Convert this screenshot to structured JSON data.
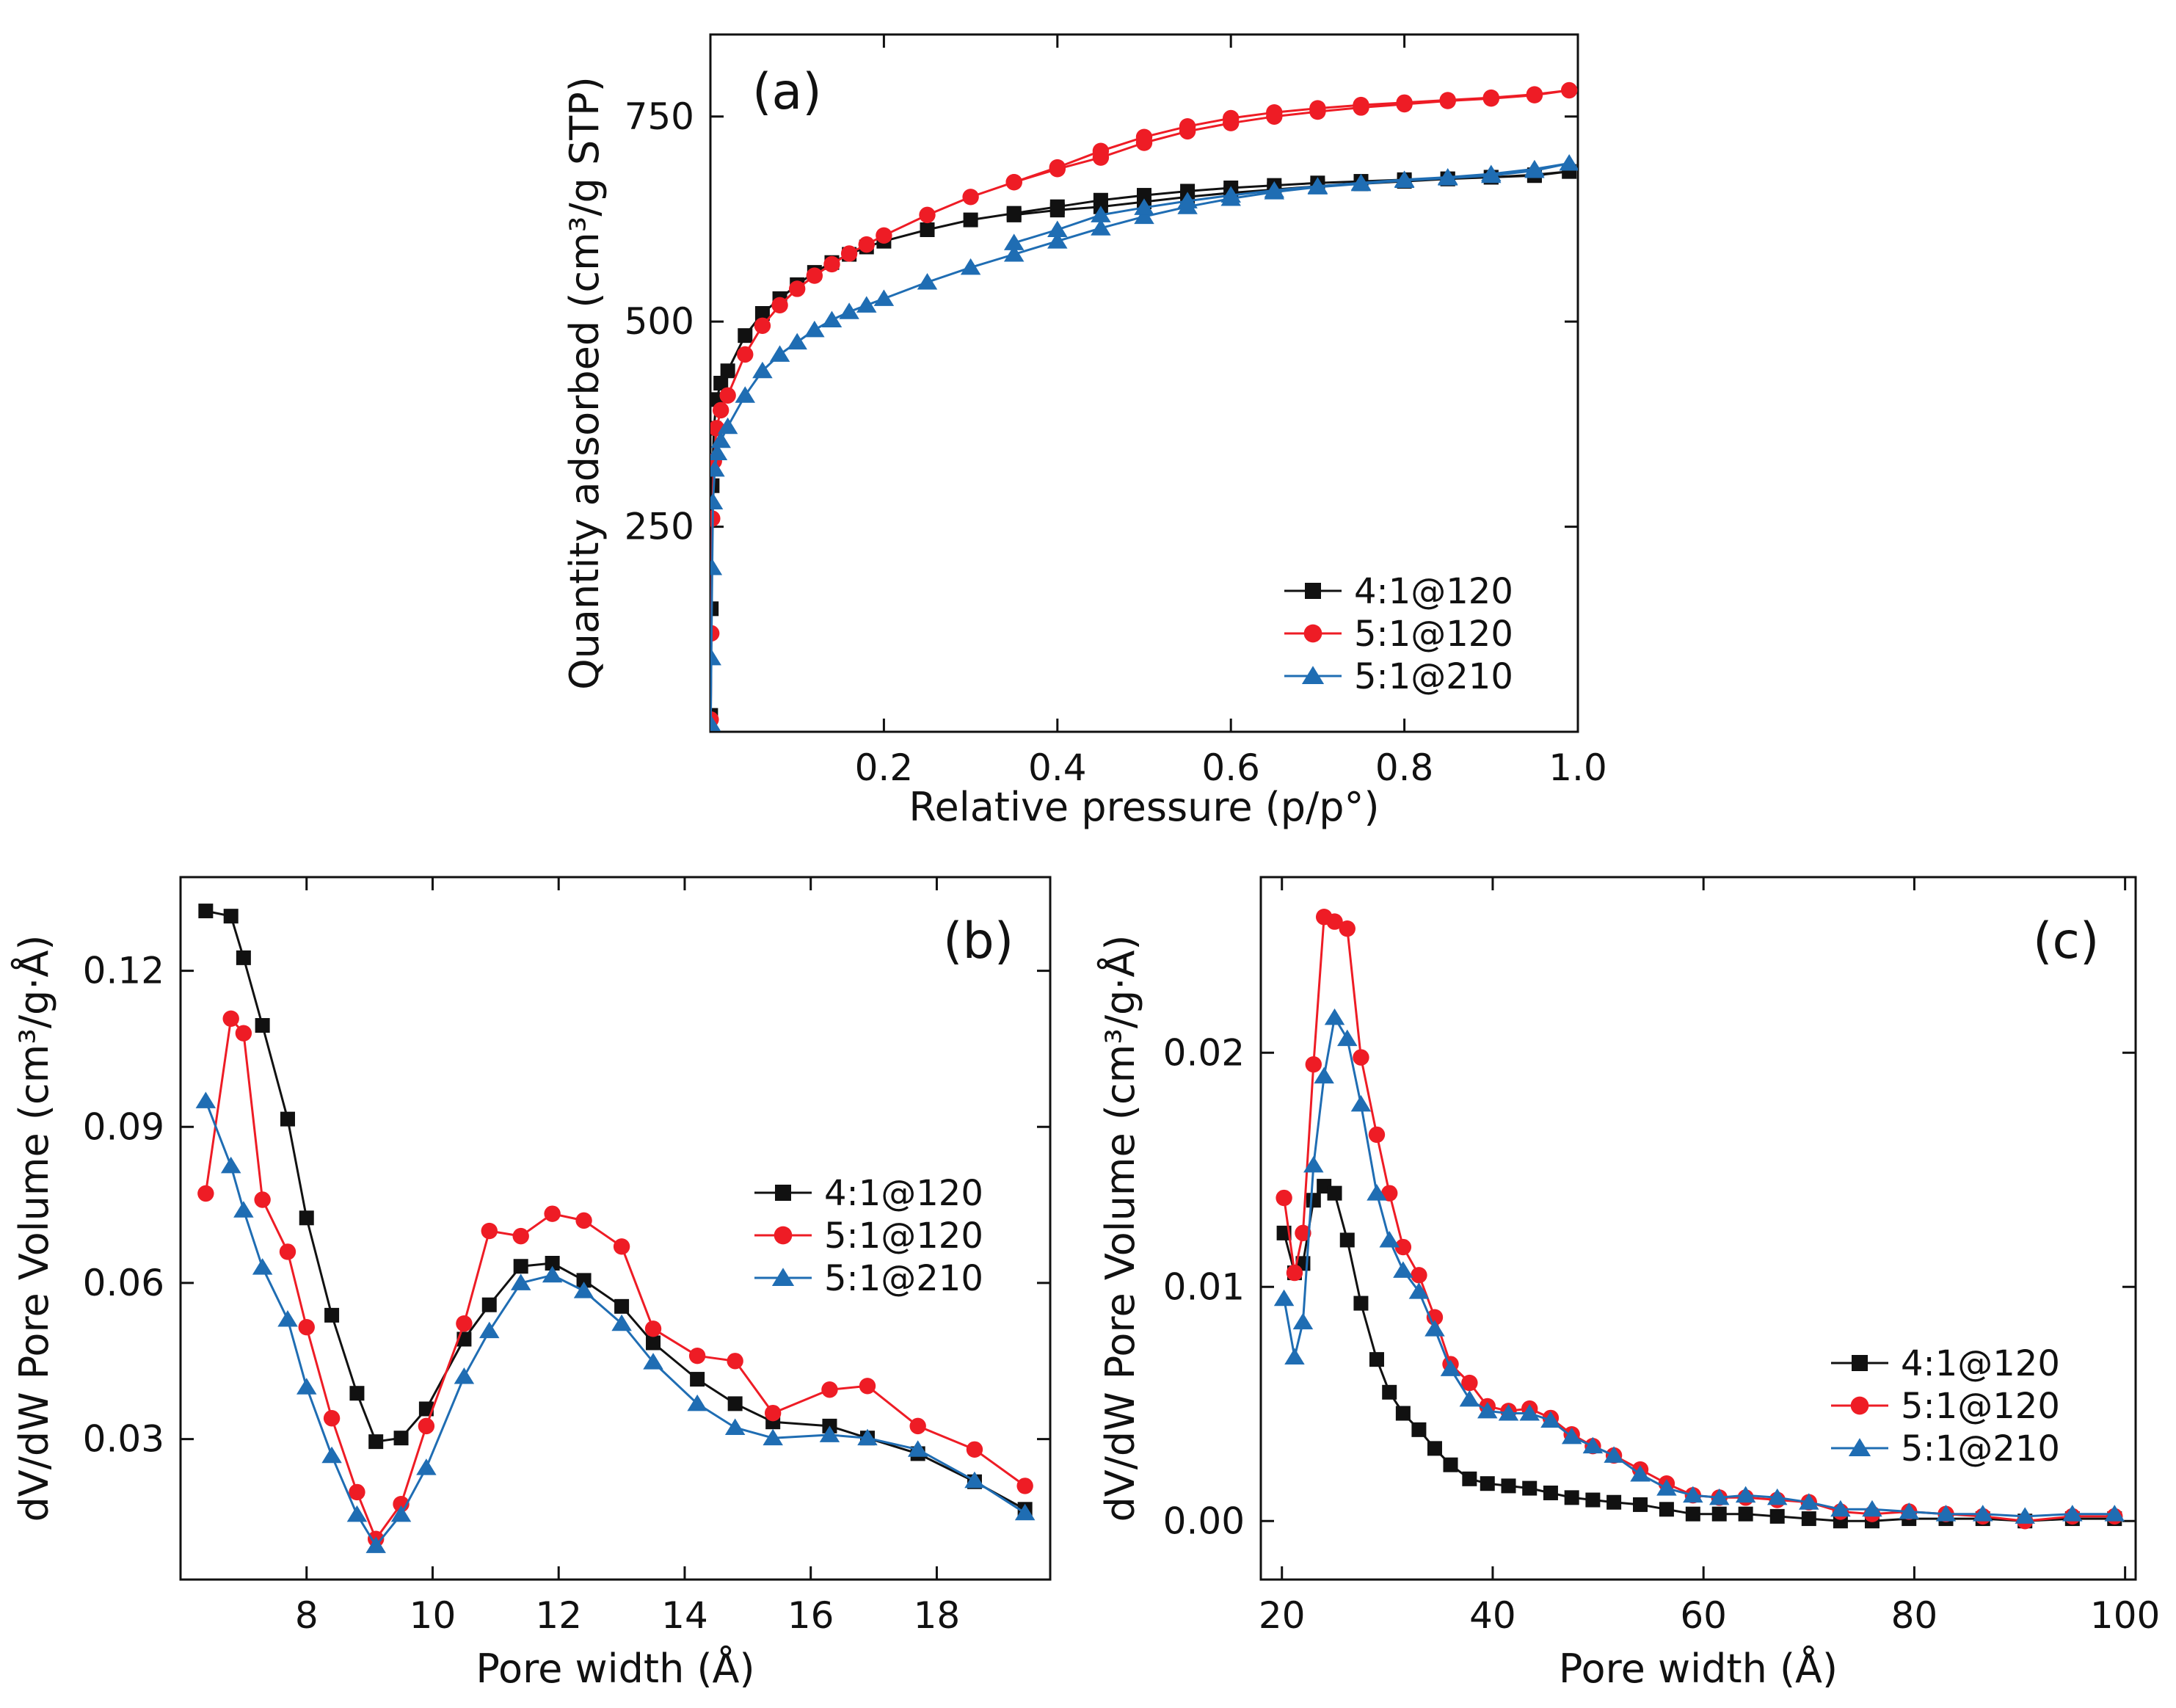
{
  "chart_data": [
    {
      "id": "a",
      "type": "line",
      "panel_label": "(a)",
      "title": "",
      "xlabel": "Relative pressure (p/p°)",
      "ylabel": "Quantity adsorbed (cm³/g STP)",
      "xlim": [
        0,
        1.0
      ],
      "ylim": [
        0,
        850
      ],
      "xticks": [
        0.2,
        0.4,
        0.6,
        0.8,
        1.0
      ],
      "xtick_labels": [
        "0.2",
        "0.4",
        "0.6",
        "0.8",
        "1.0"
      ],
      "yticks": [
        250,
        500,
        750
      ],
      "ytick_labels": [
        "250",
        "500",
        "750"
      ],
      "legend_position": "bottom-right",
      "series": [
        {
          "name": "4:1@120",
          "color": "#111111",
          "marker": "square",
          "x": [
            0.0003,
            0.001,
            0.002,
            0.004,
            0.007,
            0.012,
            0.02,
            0.04,
            0.06,
            0.08,
            0.1,
            0.12,
            0.14,
            0.16,
            0.18,
            0.2,
            0.25,
            0.3,
            0.35,
            0.4,
            0.45,
            0.5,
            0.55,
            0.6,
            0.65,
            0.7,
            0.75,
            0.8,
            0.85,
            0.9,
            0.95,
            0.99,
            0.95,
            0.9,
            0.85,
            0.8,
            0.75,
            0.7,
            0.65,
            0.6,
            0.55,
            0.5,
            0.45,
            0.4,
            0.35
          ],
          "y": [
            20,
            150,
            300,
            370,
            405,
            425,
            440,
            483,
            510,
            528,
            545,
            560,
            572,
            582,
            591,
            598,
            612,
            624,
            632,
            640,
            648,
            654,
            659,
            663,
            666,
            669,
            671,
            673,
            674,
            676,
            678,
            683,
            679,
            676,
            674,
            671,
            668,
            665,
            661,
            657,
            652,
            646,
            640,
            636,
            630
          ]
        },
        {
          "name": "5:1@120",
          "color": "#ee1c25",
          "marker": "circle",
          "x": [
            0.0003,
            0.001,
            0.002,
            0.004,
            0.007,
            0.012,
            0.02,
            0.04,
            0.06,
            0.08,
            0.1,
            0.12,
            0.14,
            0.16,
            0.18,
            0.2,
            0.25,
            0.3,
            0.35,
            0.4,
            0.45,
            0.5,
            0.55,
            0.6,
            0.65,
            0.7,
            0.75,
            0.8,
            0.85,
            0.9,
            0.95,
            0.99,
            0.95,
            0.9,
            0.85,
            0.8,
            0.75,
            0.7,
            0.65,
            0.6,
            0.55,
            0.5,
            0.45,
            0.4,
            0.35
          ],
          "y": [
            15,
            120,
            260,
            330,
            370,
            392,
            410,
            460,
            495,
            520,
            540,
            556,
            570,
            583,
            594,
            605,
            630,
            652,
            670,
            688,
            708,
            725,
            738,
            748,
            755,
            760,
            764,
            767,
            770,
            773,
            777,
            782,
            776,
            772,
            769,
            765,
            761,
            756,
            750,
            742,
            732,
            718,
            700,
            686,
            670
          ]
        },
        {
          "name": "5:1@210",
          "color": "#1f6db3",
          "marker": "triangle",
          "x": [
            0.0003,
            0.001,
            0.002,
            0.003,
            0.005,
            0.008,
            0.012,
            0.02,
            0.04,
            0.06,
            0.08,
            0.1,
            0.12,
            0.14,
            0.16,
            0.18,
            0.2,
            0.25,
            0.3,
            0.35,
            0.4,
            0.45,
            0.5,
            0.55,
            0.6,
            0.65,
            0.7,
            0.75,
            0.8,
            0.85,
            0.9,
            0.95,
            0.99,
            0.95,
            0.9,
            0.85,
            0.8,
            0.75,
            0.7,
            0.65,
            0.6,
            0.55,
            0.5,
            0.45,
            0.4,
            0.35
          ],
          "y": [
            10,
            90,
            200,
            280,
            320,
            340,
            355,
            372,
            410,
            440,
            460,
            475,
            490,
            502,
            512,
            520,
            528,
            548,
            566,
            582,
            598,
            614,
            628,
            640,
            650,
            658,
            664,
            668,
            672,
            675,
            678,
            684,
            693,
            686,
            680,
            676,
            673,
            669,
            665,
            660,
            654,
            647,
            639,
            630,
            612,
            596
          ]
        }
      ]
    },
    {
      "id": "b",
      "type": "line",
      "panel_label": "(b)",
      "title": "",
      "xlabel": "Pore width (Å)",
      "ylabel": "dV/dW Pore Volume (cm³/g·Å)",
      "xlim": [
        6.0,
        19.8
      ],
      "ylim": [
        0.003,
        0.138
      ],
      "xticks": [
        8,
        10,
        12,
        14,
        16,
        18
      ],
      "xtick_labels": [
        "8",
        "10",
        "12",
        "14",
        "16",
        "18"
      ],
      "yticks": [
        0.03,
        0.06,
        0.09,
        0.12
      ],
      "ytick_labels": [
        "0.03",
        "0.06",
        "0.09",
        "0.12"
      ],
      "legend_position": "center-right",
      "series": [
        {
          "name": "4:1@120",
          "color": "#111111",
          "marker": "square",
          "x": [
            6.4,
            6.8,
            7.0,
            7.3,
            7.7,
            8.0,
            8.4,
            8.8,
            9.1,
            9.5,
            9.9,
            10.5,
            10.9,
            11.4,
            11.9,
            12.4,
            13.0,
            13.5,
            14.2,
            14.8,
            15.4,
            16.3,
            16.9,
            17.7,
            18.6,
            19.4
          ],
          "y": [
            0.1315,
            0.1305,
            0.1225,
            0.1095,
            0.0915,
            0.0725,
            0.0538,
            0.0388,
            0.0295,
            0.0302,
            0.0358,
            0.0492,
            0.0558,
            0.0632,
            0.0638,
            0.0605,
            0.0555,
            0.0485,
            0.0415,
            0.0368,
            0.0333,
            0.0325,
            0.0302,
            0.0272,
            0.0218,
            0.0165
          ]
        },
        {
          "name": "5:1@120",
          "color": "#ee1c25",
          "marker": "circle",
          "x": [
            6.4,
            6.8,
            7.0,
            7.3,
            7.7,
            8.0,
            8.4,
            8.8,
            9.1,
            9.5,
            9.9,
            10.5,
            10.9,
            11.4,
            11.9,
            12.4,
            13.0,
            13.5,
            14.2,
            14.8,
            15.4,
            16.3,
            16.9,
            17.7,
            18.6,
            19.4
          ],
          "y": [
            0.0772,
            0.1108,
            0.108,
            0.076,
            0.066,
            0.0515,
            0.034,
            0.0198,
            0.0108,
            0.0175,
            0.0325,
            0.0522,
            0.07,
            0.069,
            0.0733,
            0.072,
            0.067,
            0.0512,
            0.046,
            0.045,
            0.035,
            0.0395,
            0.0402,
            0.0325,
            0.028,
            0.021
          ]
        },
        {
          "name": "5:1@210",
          "color": "#1f6db3",
          "marker": "triangle",
          "x": [
            6.4,
            6.8,
            7.0,
            7.3,
            7.7,
            8.0,
            8.4,
            8.8,
            9.1,
            9.5,
            9.9,
            10.5,
            10.9,
            11.4,
            11.9,
            12.4,
            13.0,
            13.5,
            14.2,
            14.8,
            15.4,
            16.3,
            16.9,
            17.7,
            18.6,
            19.4
          ],
          "y": [
            0.095,
            0.0825,
            0.074,
            0.063,
            0.053,
            0.04,
            0.0268,
            0.0155,
            0.0095,
            0.0155,
            0.0245,
            0.042,
            0.0508,
            0.06,
            0.0615,
            0.0585,
            0.0522,
            0.0448,
            0.0368,
            0.0322,
            0.0302,
            0.0308,
            0.0302,
            0.028,
            0.022,
            0.0158
          ]
        }
      ]
    },
    {
      "id": "c",
      "type": "line",
      "panel_label": "(c)",
      "title": "",
      "xlabel": "Pore width (Å)",
      "ylabel": "dV/dW Pore Volume (cm³/g·Å)",
      "xlim": [
        18,
        101
      ],
      "ylim": [
        -0.0025,
        0.0275
      ],
      "xticks": [
        20,
        40,
        60,
        80,
        100
      ],
      "xtick_labels": [
        "20",
        "40",
        "60",
        "80",
        "100"
      ],
      "yticks": [
        0.0,
        0.01,
        0.02
      ],
      "ytick_labels": [
        "0.00",
        "0.01",
        "0.02"
      ],
      "legend_position": "bottom-right",
      "series": [
        {
          "name": "4:1@120",
          "color": "#111111",
          "marker": "square",
          "x": [
            20.2,
            21.2,
            22.0,
            23.0,
            24.0,
            25.0,
            26.2,
            27.5,
            29.0,
            30.2,
            31.5,
            33.0,
            34.5,
            36.0,
            37.8,
            39.5,
            41.5,
            43.5,
            45.5,
            47.5,
            49.5,
            51.5,
            54.0,
            56.5,
            59.0,
            61.5,
            64.0,
            67.0,
            70.0,
            73.0,
            76.0,
            79.5,
            83.0,
            86.5,
            90.5,
            95.0,
            99.0
          ],
          "y": [
            0.0123,
            0.0106,
            0.011,
            0.0137,
            0.0143,
            0.014,
            0.012,
            0.0093,
            0.0069,
            0.0055,
            0.0046,
            0.0039,
            0.0031,
            0.0024,
            0.0018,
            0.0016,
            0.0015,
            0.0014,
            0.0012,
            0.001,
            0.0009,
            0.0008,
            0.0007,
            0.0005,
            0.0003,
            0.0003,
            0.0003,
            0.0002,
            0.0001,
            0.0,
            0.0,
            0.0001,
            0.0001,
            0.0001,
            0.0,
            0.0001,
            0.0001
          ]
        },
        {
          "name": "5:1@120",
          "color": "#ee1c25",
          "marker": "circle",
          "x": [
            20.2,
            21.2,
            22.0,
            23.0,
            24.0,
            25.0,
            26.2,
            27.5,
            29.0,
            30.2,
            31.5,
            33.0,
            34.5,
            36.0,
            37.8,
            39.5,
            41.5,
            43.5,
            45.5,
            47.5,
            49.5,
            51.5,
            54.0,
            56.5,
            59.0,
            61.5,
            64.0,
            67.0,
            70.0,
            73.0,
            76.0,
            79.5,
            83.0,
            86.5,
            90.5,
            95.0,
            99.0
          ],
          "y": [
            0.0138,
            0.0106,
            0.0123,
            0.0195,
            0.0258,
            0.0256,
            0.0253,
            0.0198,
            0.0165,
            0.014,
            0.0117,
            0.0105,
            0.0087,
            0.0067,
            0.0059,
            0.0049,
            0.0047,
            0.0048,
            0.0044,
            0.0037,
            0.0032,
            0.0028,
            0.0022,
            0.0016,
            0.0011,
            0.001,
            0.001,
            0.0009,
            0.0008,
            0.0004,
            0.0003,
            0.0004,
            0.0003,
            0.0002,
            0.0,
            0.0002,
            0.0002
          ]
        },
        {
          "name": "5:1@210",
          "color": "#1f6db3",
          "marker": "triangle",
          "x": [
            20.2,
            21.2,
            22.0,
            23.0,
            24.0,
            25.0,
            26.2,
            27.5,
            29.0,
            30.2,
            31.5,
            33.0,
            34.5,
            36.0,
            37.8,
            39.5,
            41.5,
            43.5,
            45.5,
            47.5,
            49.5,
            51.5,
            54.0,
            56.5,
            59.0,
            61.5,
            64.0,
            67.0,
            70.0,
            73.0,
            76.0,
            79.5,
            83.0,
            86.5,
            90.5,
            95.0,
            99.0
          ],
          "y": [
            0.0095,
            0.007,
            0.0085,
            0.0152,
            0.019,
            0.0215,
            0.0206,
            0.0178,
            0.014,
            0.012,
            0.0107,
            0.0098,
            0.0082,
            0.0065,
            0.0052,
            0.0047,
            0.0046,
            0.0046,
            0.0043,
            0.0036,
            0.0032,
            0.0028,
            0.002,
            0.0014,
            0.0011,
            0.001,
            0.0011,
            0.001,
            0.0008,
            0.0005,
            0.0005,
            0.0004,
            0.0003,
            0.0003,
            0.0002,
            0.0003,
            0.0003
          ]
        }
      ]
    }
  ]
}
